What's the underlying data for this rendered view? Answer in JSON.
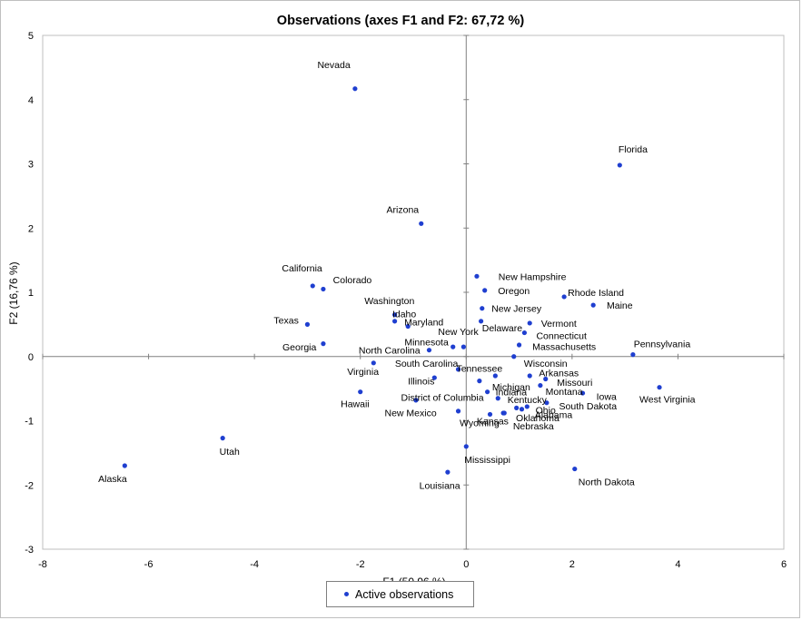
{
  "colors": {
    "point": "#1f3fd0",
    "axis": "#808080",
    "plot_border": "#bfbfbf"
  },
  "chart_data": {
    "type": "scatter",
    "title": "Observations (axes F1 and F2: 67,72 %)",
    "xlabel": "F1 (50,96 %)",
    "ylabel": "F2 (16,76 %)",
    "xlim": [
      -8,
      6
    ],
    "ylim": [
      -3,
      5
    ],
    "xticks": [
      -8,
      -6,
      -4,
      -2,
      0,
      2,
      4,
      6
    ],
    "yticks": [
      -3,
      -2,
      -1,
      0,
      1,
      2,
      3,
      4,
      5
    ],
    "legend": {
      "label": "Active observations",
      "position": "bottom"
    },
    "points": [
      {
        "name": "Alaska",
        "x": -6.45,
        "y": -1.7,
        "lx": -0.23,
        "ly": -0.2,
        "anchor": "middle"
      },
      {
        "name": "Utah",
        "x": -4.6,
        "y": -1.27,
        "lx": 0.13,
        "ly": -0.2,
        "anchor": "middle"
      },
      {
        "name": "Nevada",
        "x": -2.1,
        "y": 4.17,
        "lx": -0.4,
        "ly": 0.38,
        "anchor": "middle"
      },
      {
        "name": "Arizona",
        "x": -0.85,
        "y": 2.07,
        "lx": -0.35,
        "ly": 0.22,
        "anchor": "middle"
      },
      {
        "name": "California",
        "x": -2.9,
        "y": 1.1,
        "lx": -0.2,
        "ly": 0.28,
        "anchor": "middle"
      },
      {
        "name": "Colorado",
        "x": -2.7,
        "y": 1.05,
        "lx": 0.55,
        "ly": 0.15,
        "anchor": "middle"
      },
      {
        "name": "Texas",
        "x": -3.0,
        "y": 0.5,
        "lx": -0.4,
        "ly": 0.07,
        "anchor": "middle"
      },
      {
        "name": "Georgia",
        "x": -2.7,
        "y": 0.2,
        "lx": -0.45,
        "ly": -0.05,
        "anchor": "middle"
      },
      {
        "name": "Washington",
        "x": -1.35,
        "y": 0.65,
        "lx": -0.1,
        "ly": 0.22,
        "anchor": "middle"
      },
      {
        "name": "Idaho",
        "x": -1.35,
        "y": 0.55,
        "lx": 0.18,
        "ly": 0.12,
        "anchor": "middle"
      },
      {
        "name": "Maryland",
        "x": -1.1,
        "y": 0.47,
        "lx": 0.3,
        "ly": 0.07,
        "anchor": "middle"
      },
      {
        "name": "North Carolina",
        "x": -0.7,
        "y": 0.1,
        "lx": -0.75,
        "ly": 0.0,
        "anchor": "middle"
      },
      {
        "name": "Minnesota",
        "x": -0.25,
        "y": 0.15,
        "lx": -0.5,
        "ly": 0.08,
        "anchor": "middle"
      },
      {
        "name": "New York",
        "x": -0.05,
        "y": 0.15,
        "lx": -0.1,
        "ly": 0.24,
        "anchor": "middle"
      },
      {
        "name": "Virginia",
        "x": -1.75,
        "y": -0.1,
        "lx": -0.2,
        "ly": -0.13,
        "anchor": "middle"
      },
      {
        "name": "Hawaii",
        "x": -2.0,
        "y": -0.55,
        "lx": -0.1,
        "ly": -0.18,
        "anchor": "middle"
      },
      {
        "name": "South Carolina",
        "x": -0.15,
        "y": -0.2,
        "lx": -0.6,
        "ly": 0.1,
        "anchor": "middle"
      },
      {
        "name": "Tennessee",
        "x": 0.25,
        "y": -0.38,
        "lx": 0.0,
        "ly": 0.2,
        "anchor": "middle"
      },
      {
        "name": "Illinois",
        "x": -0.6,
        "y": -0.33,
        "lx": -0.25,
        "ly": -0.05,
        "anchor": "middle"
      },
      {
        "name": "District of Columbia",
        "x": -0.95,
        "y": -0.68,
        "lx": 0.5,
        "ly": 0.05,
        "anchor": "middle"
      },
      {
        "name": "New Mexico",
        "x": -0.15,
        "y": -0.85,
        "lx": -0.9,
        "ly": -0.02,
        "anchor": "middle"
      },
      {
        "name": "Wyoming",
        "x": 0.45,
        "y": -0.9,
        "lx": -0.2,
        "ly": -0.13,
        "anchor": "middle"
      },
      {
        "name": "Kansas",
        "x": 0.7,
        "y": -0.88,
        "lx": -0.2,
        "ly": -0.12,
        "anchor": "middle"
      },
      {
        "name": "Mississippi",
        "x": 0.0,
        "y": -1.4,
        "lx": 0.4,
        "ly": -0.2,
        "anchor": "middle"
      },
      {
        "name": "Louisiana",
        "x": -0.35,
        "y": -1.8,
        "lx": -0.15,
        "ly": -0.2,
        "anchor": "middle"
      },
      {
        "name": "New Hampshire",
        "x": 0.2,
        "y": 1.25,
        "lx": 1.05,
        "ly": 0.0,
        "anchor": "middle"
      },
      {
        "name": "Oregon",
        "x": 0.35,
        "y": 1.03,
        "lx": 0.55,
        "ly": 0.0,
        "anchor": "middle"
      },
      {
        "name": "New Jersey",
        "x": 0.3,
        "y": 0.75,
        "lx": 0.65,
        "ly": 0.0,
        "anchor": "middle"
      },
      {
        "name": "Delaware",
        "x": 0.28,
        "y": 0.55,
        "lx": 0.4,
        "ly": -0.1,
        "anchor": "middle"
      },
      {
        "name": "Vermont",
        "x": 1.2,
        "y": 0.52,
        "lx": 0.55,
        "ly": 0.0,
        "anchor": "middle"
      },
      {
        "name": "Connecticut",
        "x": 1.1,
        "y": 0.37,
        "lx": 0.7,
        "ly": -0.04,
        "anchor": "middle"
      },
      {
        "name": "Massachusetts",
        "x": 1.0,
        "y": 0.18,
        "lx": 0.85,
        "ly": -0.02,
        "anchor": "middle"
      },
      {
        "name": "Wisconsin",
        "x": 0.9,
        "y": 0.0,
        "lx": 0.6,
        "ly": -0.1,
        "anchor": "middle"
      },
      {
        "name": "Arkansas",
        "x": 1.2,
        "y": -0.3,
        "lx": 0.55,
        "ly": 0.05,
        "anchor": "middle"
      },
      {
        "name": "Missouri",
        "x": 1.5,
        "y": -0.35,
        "lx": 0.55,
        "ly": -0.05,
        "anchor": "middle"
      },
      {
        "name": "Montana",
        "x": 1.4,
        "y": -0.45,
        "lx": 0.45,
        "ly": -0.09,
        "anchor": "middle"
      },
      {
        "name": "Michigan",
        "x": 0.55,
        "y": -0.3,
        "lx": 0.3,
        "ly": -0.17,
        "anchor": "middle"
      },
      {
        "name": "Indiana",
        "x": 0.4,
        "y": -0.55,
        "lx": 0.45,
        "ly": 0.0,
        "anchor": "middle"
      },
      {
        "name": "Kentucky",
        "x": 0.6,
        "y": -0.65,
        "lx": 0.55,
        "ly": -0.02,
        "anchor": "middle"
      },
      {
        "name": "Ohio",
        "x": 1.15,
        "y": -0.78,
        "lx": 0.35,
        "ly": -0.05,
        "anchor": "middle"
      },
      {
        "name": "Oklahoma",
        "x": 1.05,
        "y": -0.82,
        "lx": 0.3,
        "ly": -0.13,
        "anchor": "middle"
      },
      {
        "name": "Alabama",
        "x": 0.95,
        "y": -0.8,
        "lx": 0.7,
        "ly": -0.1,
        "anchor": "middle"
      },
      {
        "name": "Nebraska",
        "x": 0.72,
        "y": -0.88,
        "lx": 0.55,
        "ly": -0.2,
        "anchor": "middle"
      },
      {
        "name": "South Dakota",
        "x": 1.52,
        "y": -0.72,
        "lx": 0.78,
        "ly": -0.05,
        "anchor": "middle"
      },
      {
        "name": "Iowa",
        "x": 2.2,
        "y": -0.57,
        "lx": 0.45,
        "ly": -0.05,
        "anchor": "middle"
      },
      {
        "name": "West Virginia",
        "x": 3.65,
        "y": -0.48,
        "lx": 0.15,
        "ly": -0.18,
        "anchor": "middle"
      },
      {
        "name": "Pennsylvania",
        "x": 3.15,
        "y": 0.03,
        "lx": 0.55,
        "ly": 0.17,
        "anchor": "middle"
      },
      {
        "name": "Maine",
        "x": 2.4,
        "y": 0.8,
        "lx": 0.5,
        "ly": 0.0,
        "anchor": "middle"
      },
      {
        "name": "Rhode Island",
        "x": 1.85,
        "y": 0.93,
        "lx": 0.6,
        "ly": 0.07,
        "anchor": "middle"
      },
      {
        "name": "Florida",
        "x": 2.9,
        "y": 2.98,
        "lx": 0.25,
        "ly": 0.25,
        "anchor": "middle"
      },
      {
        "name": "North Dakota",
        "x": 2.05,
        "y": -1.75,
        "lx": 0.6,
        "ly": -0.2,
        "anchor": "middle"
      }
    ]
  }
}
